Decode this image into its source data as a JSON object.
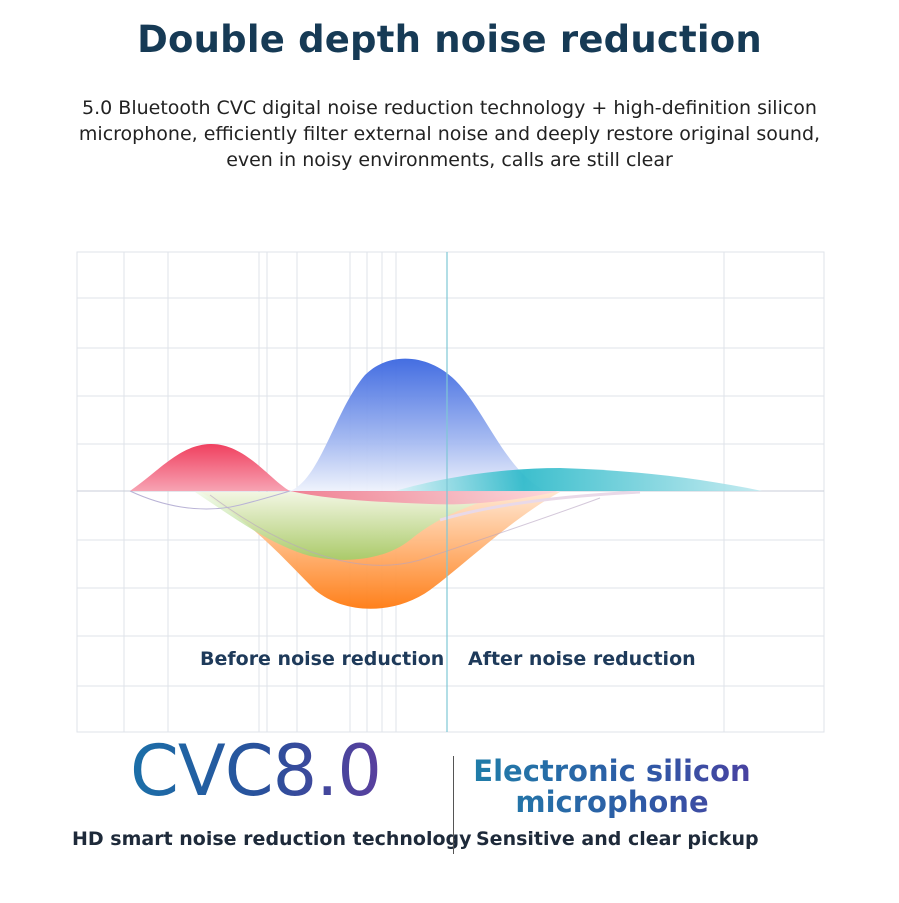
{
  "heading": {
    "title": "Double depth noise reduction",
    "subtitle_lines": [
      "5.0 Bluetooth CVC digital noise reduction technology + high-definition silicon",
      "microphone, efficiently filter external noise and deeply restore original sound,",
      "even in noisy environments, calls are still clear"
    ]
  },
  "graphic": {
    "label_before": "Before noise reduction",
    "label_after": "After noise reduction"
  },
  "footer": {
    "cvc_logo": "CVC8.0",
    "cvc_caption": "HD smart noise reduction technology",
    "mic_title_lines": [
      "Electronic silicon",
      "microphone"
    ],
    "mic_caption": "Sensitive and clear pickup"
  },
  "colors": {
    "title": "#163a55",
    "grid": "#dfe3ea",
    "divider_line": "#7fc7d6",
    "wave_red": "#f0405f",
    "wave_blue": "#3a66e0",
    "wave_cyan": "#28b8c8",
    "wave_orange": "#ff7f1a",
    "wave_green": "#9cd06a"
  }
}
